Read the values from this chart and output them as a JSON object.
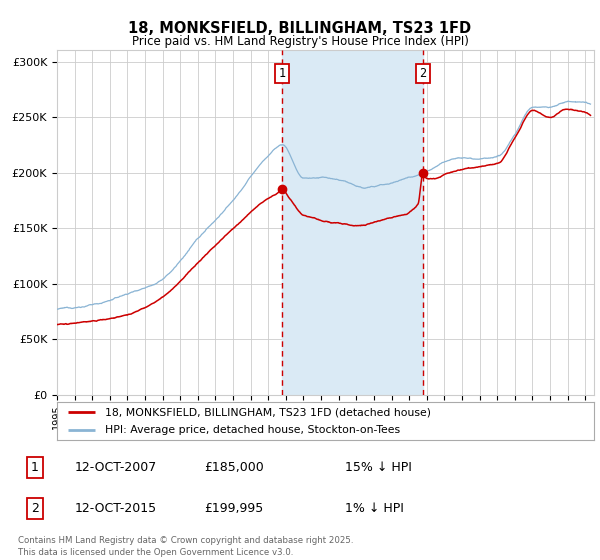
{
  "title": "18, MONKSFIELD, BILLINGHAM, TS23 1FD",
  "subtitle": "Price paid vs. HM Land Registry's House Price Index (HPI)",
  "ylim": [
    0,
    310000
  ],
  "xlim_start": 1995.0,
  "xlim_end": 2025.5,
  "hpi_color": "#8ab4d4",
  "price_color": "#cc0000",
  "point1_date": 2007.786,
  "point1_price": 185000,
  "point2_date": 2015.786,
  "point2_price": 199995,
  "vline_color": "#cc0000",
  "shade_color": "#daeaf5",
  "legend_label_price": "18, MONKSFIELD, BILLINGHAM, TS23 1FD (detached house)",
  "legend_label_hpi": "HPI: Average price, detached house, Stockton-on-Tees",
  "table_row1": [
    "1",
    "12-OCT-2007",
    "£185,000",
    "15% ↓ HPI"
  ],
  "table_row2": [
    "2",
    "12-OCT-2015",
    "£199,995",
    "1% ↓ HPI"
  ],
  "footnote": "Contains HM Land Registry data © Crown copyright and database right 2025.\nThis data is licensed under the Open Government Licence v3.0.",
  "ytick_labels": [
    "£0",
    "£50K",
    "£100K",
    "£150K",
    "£200K",
    "£250K",
    "£300K"
  ],
  "ytick_values": [
    0,
    50000,
    100000,
    150000,
    200000,
    250000,
    300000
  ],
  "bg_color": "#ffffff",
  "grid_color": "#cccccc"
}
